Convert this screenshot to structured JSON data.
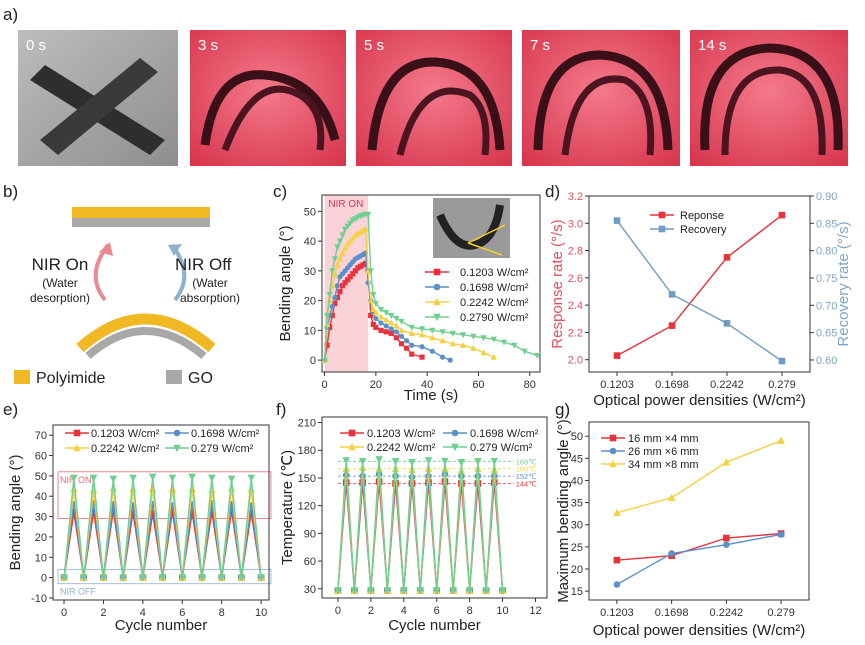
{
  "figure": {
    "panel_labels": [
      "a)",
      "b)",
      "c)",
      "d)",
      "e)",
      "f)",
      "g)"
    ],
    "photo_times": [
      "0 s",
      "3 s",
      "5 s",
      "7 s",
      "14 s"
    ],
    "diagram": {
      "nir_on": "NIR On",
      "nir_on_sub1": "(Water",
      "nir_on_sub2": "desorption)",
      "nir_off": "NIR Off",
      "nir_off_sub1": "(Water",
      "nir_off_sub2": "absorption)",
      "legend_polyimide": "Polyimide",
      "legend_go": "GO",
      "colors": {
        "polyimide": "#f0b823",
        "go": "#a8a8a8",
        "arrow_on": "#e88a92",
        "arrow_off": "#8fb0cf"
      }
    }
  },
  "chart_data": [
    {
      "id": "c",
      "type": "line",
      "xlabel": "Time (s)",
      "ylabel": "Bending angle (°)",
      "xlim": [
        -1,
        84
      ],
      "ylim": [
        -4,
        55.5
      ],
      "xticks": [
        "0",
        "20",
        "40",
        "60",
        "80"
      ],
      "xtick_values": [
        0,
        20,
        40,
        60,
        80
      ],
      "yticks": [
        "0",
        "10",
        "20",
        "30",
        "40",
        "50"
      ],
      "ytick_values": [
        0,
        10,
        20,
        30,
        40,
        50
      ],
      "annotation": "NIR ON",
      "nir_on_range": [
        0,
        17
      ],
      "shade_color": "#f9d3d8",
      "legend": "top-right",
      "series": [
        {
          "name": "0.1203 W/cm²",
          "color": "#e8323c",
          "marker": "square",
          "x": [
            0,
            1,
            2,
            3,
            4,
            5,
            6,
            7,
            8,
            9,
            10,
            11,
            12,
            13,
            14,
            15,
            16,
            17,
            18,
            19,
            20,
            22,
            24,
            26,
            28,
            30,
            32,
            34,
            38
          ],
          "values": [
            0,
            5,
            11,
            15,
            19,
            21,
            23,
            25,
            26,
            27,
            28,
            29,
            30,
            31,
            31.5,
            32,
            32.5,
            30,
            15,
            12,
            11,
            10,
            9.5,
            9,
            7.5,
            5.5,
            4,
            2,
            1
          ]
        },
        {
          "name": "0.1698 W/cm²",
          "color": "#5b8fc9",
          "marker": "circle",
          "x": [
            0,
            1,
            2,
            3,
            4,
            5,
            6,
            7,
            8,
            9,
            10,
            11,
            12,
            13,
            14,
            15,
            16,
            17,
            18,
            19,
            20,
            22,
            24,
            26,
            28,
            30,
            32,
            34,
            38,
            42,
            46,
            49
          ],
          "values": [
            0,
            11,
            15,
            18,
            21,
            25,
            28,
            29,
            30,
            31,
            32,
            33,
            34,
            34.5,
            35,
            35.5,
            36,
            26,
            20,
            16,
            14,
            12.5,
            11.5,
            10.5,
            9.5,
            8,
            6.5,
            5,
            4.5,
            3,
            1,
            0
          ]
        },
        {
          "name": "0.2242 W/cm²",
          "color": "#f5d142",
          "marker": "triangle-up",
          "x": [
            0,
            1,
            2,
            3,
            4,
            5,
            6,
            7,
            8,
            9,
            10,
            11,
            12,
            13,
            14,
            15,
            16,
            17,
            18,
            19,
            20,
            22,
            24,
            26,
            28,
            30,
            34,
            38,
            42,
            46,
            50,
            54,
            58,
            62,
            66
          ],
          "values": [
            0,
            12,
            20,
            25,
            29,
            32,
            34,
            36,
            37.5,
            39,
            40,
            41,
            42,
            42.5,
            43,
            43.5,
            44,
            30,
            20,
            17,
            16,
            14.5,
            13.5,
            12.5,
            11.5,
            10,
            9,
            8.5,
            7.5,
            6.5,
            5.5,
            5,
            4,
            2.5,
            1
          ]
        },
        {
          "name": "0.2790 W/cm²",
          "color": "#6fcf8f",
          "marker": "triangle-down",
          "x": [
            0,
            1,
            2,
            3,
            4,
            5,
            6,
            7,
            8,
            9,
            10,
            11,
            12,
            13,
            14,
            15,
            16,
            17,
            18,
            19,
            20,
            22,
            24,
            26,
            28,
            30,
            34,
            38,
            42,
            46,
            50,
            54,
            58,
            62,
            66,
            70,
            74,
            78,
            83
          ],
          "values": [
            0,
            15,
            22,
            30,
            34,
            38,
            40,
            42,
            44,
            45,
            46,
            47,
            47.5,
            48,
            48.5,
            48.7,
            49,
            49,
            30,
            22,
            19,
            17,
            16,
            15,
            14,
            13,
            11,
            10.5,
            10,
            9.5,
            9,
            8.5,
            8,
            7.5,
            7,
            6,
            5,
            3,
            1.5
          ]
        }
      ]
    },
    {
      "id": "d",
      "type": "line",
      "xlabel": "Optical power densities (W/cm²)",
      "ylabel": "Response rate (°/s)",
      "y2label": "Recovery rate (°/s)",
      "categories": [
        "0.1203",
        "0.1698",
        "0.2242",
        "0.279"
      ],
      "ylim": [
        1.91,
        3.2
      ],
      "y2lim": [
        0.578,
        0.9
      ],
      "yticks": [
        "2.0",
        "2.2",
        "2.4",
        "2.6",
        "2.8",
        "3.0",
        "3.2"
      ],
      "ytick_values": [
        2.0,
        2.2,
        2.4,
        2.6,
        2.8,
        3.0,
        3.2
      ],
      "y2ticks": [
        "0.60",
        "0.65",
        "0.70",
        "0.75",
        "0.80",
        "0.85",
        "0.90"
      ],
      "y2tick_values": [
        0.6,
        0.65,
        0.7,
        0.75,
        0.8,
        0.85,
        0.9
      ],
      "ylabel_color": "#e8505a",
      "y2label_color": "#7fa6c9",
      "legend": "top-center",
      "series": [
        {
          "name": "Reponse",
          "color": "#e8323c",
          "marker": "square",
          "axis": "left",
          "values": [
            2.03,
            2.25,
            2.75,
            3.06
          ]
        },
        {
          "name": "Recovery",
          "color": "#6f9cc4",
          "marker": "square",
          "axis": "right",
          "values": [
            0.855,
            0.72,
            0.667,
            0.598
          ]
        }
      ]
    },
    {
      "id": "e",
      "type": "line",
      "xlabel": "Cycle number",
      "ylabel": "Bending angle (°)",
      "xlim": [
        -0.56,
        10.4
      ],
      "ylim": [
        -11,
        75
      ],
      "xticks": [
        "0",
        "2",
        "4",
        "6",
        "8",
        "10"
      ],
      "xtick_values": [
        0,
        2,
        4,
        6,
        8,
        10
      ],
      "yticks": [
        "-10",
        "0",
        "10",
        "20",
        "30",
        "40",
        "50",
        "60",
        "70"
      ],
      "ytick_values": [
        -10,
        0,
        10,
        20,
        30,
        40,
        50,
        60,
        70
      ],
      "annotations": {
        "nir_on": "NIR ON",
        "nir_off": "NIR OFF",
        "nir_on_range": [
          29,
          52
        ],
        "nir_off_range": [
          -3,
          4
        ],
        "nir_on_color": "#e06a74",
        "nir_off_color": "#8fb0cf"
      },
      "legend": "top",
      "x": [
        0,
        0.5,
        1,
        1.5,
        2,
        2.5,
        3,
        3.5,
        4,
        4.5,
        5,
        5.5,
        6,
        6.5,
        7,
        7.5,
        8,
        8.5,
        9,
        9.5,
        10
      ],
      "series": [
        {
          "name": "0.1203 W/cm²",
          "color": "#e8323c",
          "marker": "square",
          "values": [
            0,
            32,
            0,
            32.5,
            0,
            33,
            0,
            32,
            0,
            31.5,
            0,
            32.5,
            0,
            32,
            0,
            32.5,
            0,
            33,
            0,
            32,
            0
          ]
        },
        {
          "name": "0.1698 W/cm²",
          "color": "#5b8fc9",
          "marker": "circle",
          "values": [
            0,
            36,
            0,
            36.5,
            0,
            36,
            0,
            35.5,
            0,
            36,
            0,
            35.5,
            0,
            36,
            0,
            36.5,
            0,
            36,
            0,
            35.5,
            0
          ]
        },
        {
          "name": "0.2242 W/cm²",
          "color": "#f5d142",
          "marker": "triangle-up",
          "values": [
            0,
            43.5,
            0,
            43,
            0,
            44,
            0,
            43.5,
            0,
            43.5,
            0,
            43.5,
            0,
            43.5,
            0,
            43,
            0,
            44,
            0,
            43.5,
            0
          ]
        },
        {
          "name": "0.279 W/cm²",
          "color": "#6fcf8f",
          "marker": "triangle-down",
          "values": [
            0,
            49,
            0,
            49,
            0,
            48.5,
            0,
            49,
            0,
            49.5,
            0,
            49,
            0,
            49.5,
            0,
            49,
            0,
            48.5,
            0,
            49,
            0
          ]
        }
      ]
    },
    {
      "id": "f",
      "type": "line",
      "xlabel": "Cycle number",
      "ylabel": "Temperature (℃)",
      "xlim": [
        -0.97,
        12.7
      ],
      "ylim": [
        20,
        216
      ],
      "xticks": [
        "0",
        "2",
        "4",
        "6",
        "8",
        "10",
        "12"
      ],
      "xtick_values": [
        0,
        2,
        4,
        6,
        8,
        10,
        12
      ],
      "yticks": [
        "30",
        "60",
        "90",
        "120",
        "150",
        "180",
        "210"
      ],
      "ytick_values": [
        30,
        60,
        90,
        120,
        150,
        180,
        210
      ],
      "reference_lines": [
        {
          "value": 168,
          "label": "168℃",
          "color": "#6fcf8f"
        },
        {
          "value": 160,
          "label": "160℃",
          "color": "#f5d142"
        },
        {
          "value": 152,
          "label": "152℃",
          "color": "#5b8fc9"
        },
        {
          "value": 144,
          "label": "144℃",
          "color": "#e8323c"
        }
      ],
      "legend": "top",
      "x": [
        0,
        0.5,
        1,
        1.5,
        2,
        2.5,
        3,
        3.5,
        4,
        4.5,
        5,
        5.5,
        6,
        6.5,
        7,
        7.5,
        8,
        8.5,
        9,
        9.5,
        10
      ],
      "series": [
        {
          "name": "0.1203 W/cm²",
          "color": "#e8323c",
          "marker": "square",
          "values": [
            28,
            145,
            28,
            145,
            28,
            146,
            28,
            144,
            28,
            144,
            28,
            145,
            28,
            146,
            28,
            144,
            28,
            144,
            28,
            145,
            28
          ]
        },
        {
          "name": "0.1698 W/cm²",
          "color": "#5b8fc9",
          "marker": "circle",
          "values": [
            28,
            153,
            28,
            152,
            28,
            154,
            28,
            152,
            28,
            151,
            28,
            152,
            28,
            154,
            28,
            152,
            28,
            152,
            28,
            152,
            28
          ]
        },
        {
          "name": "0.2242 W/cm²",
          "color": "#f5d142",
          "marker": "triangle-up",
          "values": [
            28,
            160,
            28,
            161,
            28,
            160,
            28,
            160,
            28,
            159,
            28,
            160,
            28,
            160,
            28,
            158,
            28,
            160,
            28,
            159,
            28
          ]
        },
        {
          "name": "0.279 W/cm²",
          "color": "#6fcf8f",
          "marker": "triangle-down",
          "values": [
            28,
            169,
            28,
            168,
            28,
            170,
            28,
            168,
            28,
            167,
            28,
            169,
            28,
            168,
            28,
            167,
            28,
            168,
            28,
            168,
            28
          ]
        }
      ]
    },
    {
      "id": "g",
      "type": "line",
      "xlabel": "Optical power densities (W/cm²)",
      "ylabel": "Maximum bending angle (°)",
      "categories": [
        "0.1203",
        "0.1698",
        "0.2242",
        "0.279"
      ],
      "ylim": [
        13,
        53.2
      ],
      "yticks": [
        "15",
        "20",
        "25",
        "30",
        "35",
        "40",
        "45",
        "50"
      ],
      "ytick_values": [
        15,
        20,
        25,
        30,
        35,
        40,
        45,
        50
      ],
      "legend": "top-left",
      "series": [
        {
          "name": "16 mm ×4 mm",
          "color": "#e8323c",
          "marker": "square",
          "values": [
            22,
            23,
            27,
            28
          ]
        },
        {
          "name": "26 mm ×6 mm",
          "color": "#5b8fc9",
          "marker": "circle",
          "values": [
            16.5,
            23.5,
            25.5,
            27.8
          ]
        },
        {
          "name": "34 mm ×8 mm",
          "color": "#f5d142",
          "marker": "triangle-up",
          "values": [
            32.7,
            36.1,
            44.1,
            49
          ]
        }
      ]
    }
  ]
}
